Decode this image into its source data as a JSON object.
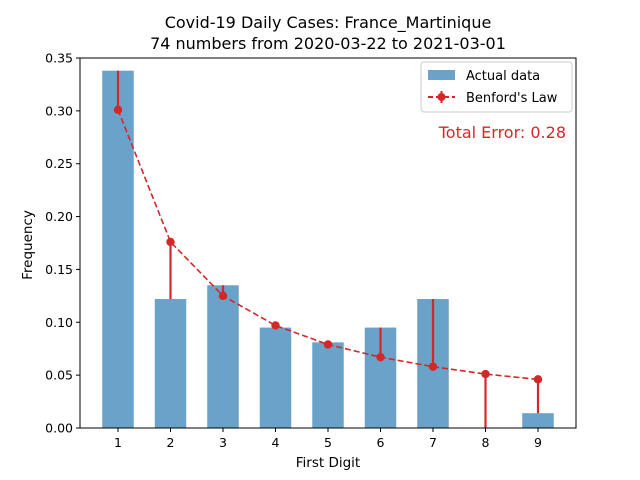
{
  "chart_data": {
    "type": "bar",
    "title": "Covid-19 Daily Cases: France_Martinique",
    "subtitle": "74 numbers from 2020-03-22 to 2021-03-01",
    "xlabel": "First Digit",
    "ylabel": "Frequency",
    "categories": [
      1,
      2,
      3,
      4,
      5,
      6,
      7,
      8,
      9
    ],
    "ylim": [
      0,
      0.35
    ],
    "yticks": [
      "0.00",
      "0.05",
      "0.10",
      "0.15",
      "0.20",
      "0.25",
      "0.30",
      "0.35"
    ],
    "series": [
      {
        "name": "Actual data",
        "type": "bar",
        "values": [
          0.338,
          0.122,
          0.135,
          0.095,
          0.081,
          0.095,
          0.122,
          0.0,
          0.014
        ]
      },
      {
        "name": "Benford's Law",
        "type": "line",
        "values": [
          0.301,
          0.176,
          0.125,
          0.097,
          0.079,
          0.067,
          0.058,
          0.051,
          0.046
        ]
      }
    ],
    "annotation": "Total Error: 0.28",
    "legend_position": "top-right",
    "grid": false,
    "colors": {
      "bar": "#6aa2c9",
      "benford": "#d62728",
      "error_text": "#d62728"
    }
  }
}
